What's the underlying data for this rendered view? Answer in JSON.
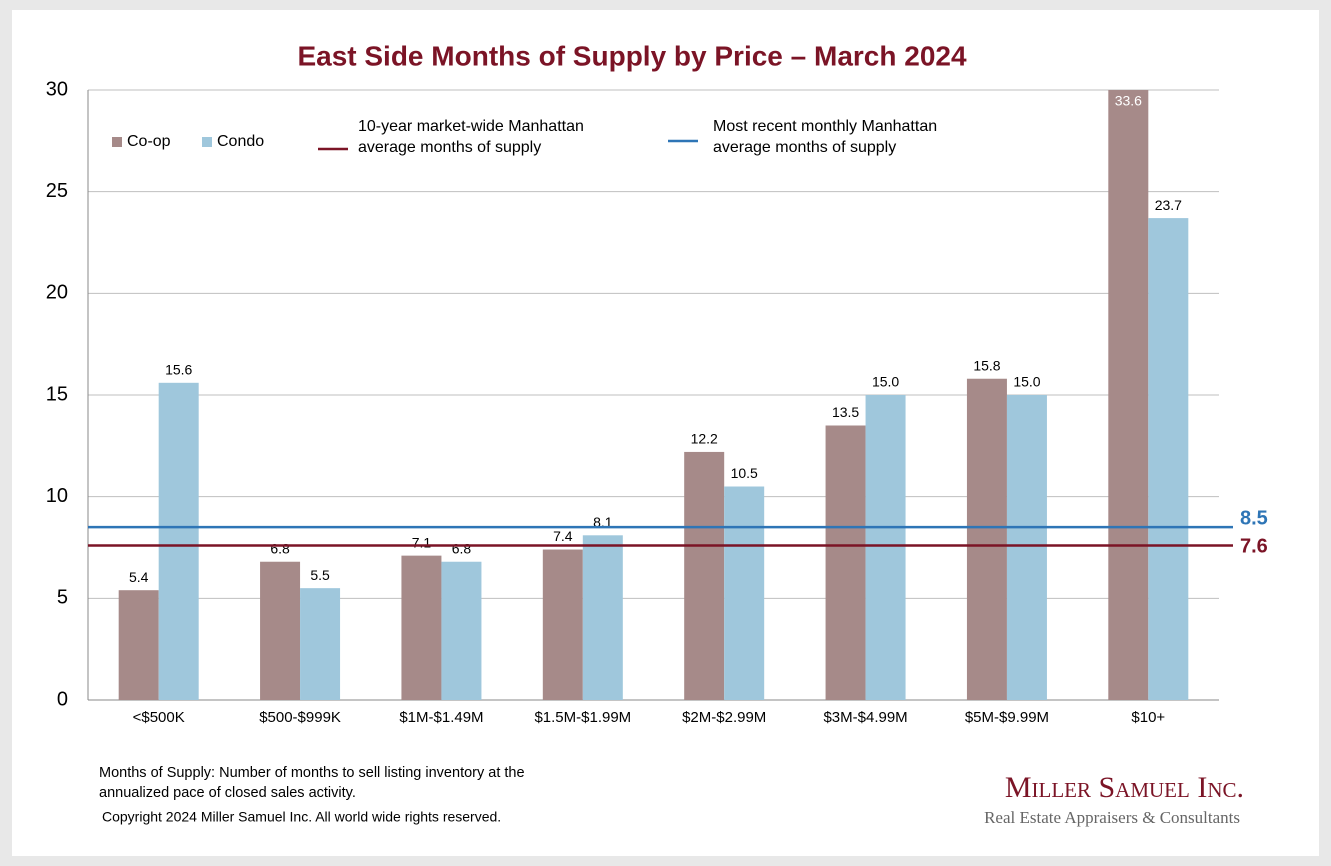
{
  "chart_data": {
    "type": "bar",
    "title": "East Side Months of Supply by Price – March 2024",
    "categories": [
      "<$500K",
      "$500-$999K",
      "$1M-$1.49M",
      "$1.5M-$1.99M",
      "$2M-$2.99M",
      "$3M-$4.99M",
      "$5M-$9.99M",
      "$10+"
    ],
    "series": [
      {
        "name": "Co-op",
        "color": "#a68a89",
        "values": [
          5.4,
          6.8,
          7.1,
          7.4,
          12.2,
          13.5,
          15.8,
          33.6
        ],
        "value_labels": [
          "5.4",
          "6.8",
          "7.1",
          "7.4",
          "12.2",
          "13.5",
          "15.8",
          "33.6"
        ]
      },
      {
        "name": "Condo",
        "color": "#9fc7dc",
        "values": [
          15.6,
          5.5,
          6.8,
          8.1,
          10.5,
          15.0,
          15.0,
          23.7
        ],
        "value_labels": [
          "15.6",
          "5.5",
          "6.8",
          "8.1",
          "10.5",
          "15.0",
          "15.0",
          "23.7"
        ]
      }
    ],
    "reference_lines": [
      {
        "name": [
          "10-year  market-wide Manhattan",
          "average months of supply"
        ],
        "value": 7.6,
        "color": "#7b1426"
      },
      {
        "name": [
          "Most recent monthly Manhattan",
          "average months of supply"
        ],
        "value": 8.5,
        "color": "#2e75b6"
      }
    ],
    "ylim": [
      0,
      30
    ],
    "yticks": [
      0,
      5,
      10,
      15,
      20,
      25,
      30
    ],
    "grid": true
  },
  "footer": {
    "note": [
      "Months of Supply: Number of months to sell listing inventory at the",
      "annualized pace of closed sales activity."
    ],
    "copyright": "Copyright 2024 Miller Samuel Inc.  All world wide rights reserved.",
    "logo": "Miller Samuel Inc.",
    "tagline": "Real Estate Appraisers & Consultants"
  }
}
